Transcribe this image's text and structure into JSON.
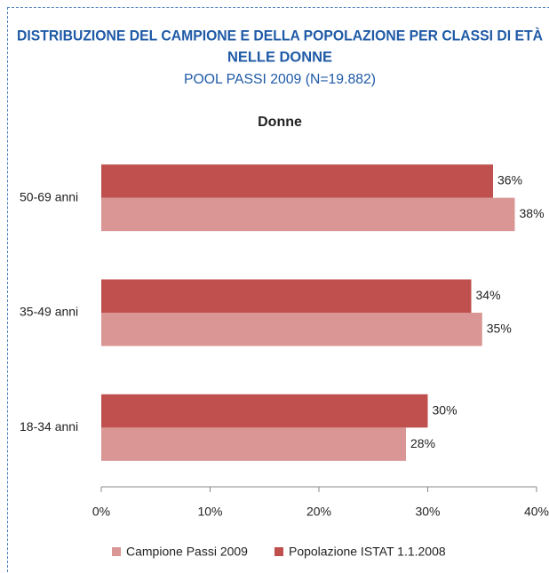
{
  "chart_data": {
    "type": "hbar",
    "title": [
      "DISTRIBUZIONE DEL CAMPIONE E DELLA POPOLAZIONE PER CLASSI DI ETÀ",
      "NELLE DONNE"
    ],
    "subtitle": "POOL PASSI 2009 (N=19.882)",
    "chart_title": "Donne",
    "categories": [
      "50-69 anni",
      "35-49 anni",
      "18-34 anni"
    ],
    "series": [
      {
        "name": "Campione Passi 2009",
        "color": "#d99694",
        "values": [
          38,
          35,
          28
        ],
        "value_labels": [
          "38%",
          "35%",
          "28%"
        ]
      },
      {
        "name": "Popolazione ISTAT 1.1.2008",
        "color": "#c0504d",
        "values": [
          36,
          34,
          30
        ],
        "value_labels": [
          "36%",
          "34%",
          "30%"
        ]
      }
    ],
    "xlim": [
      0,
      40
    ],
    "xticks": [
      {
        "value": 0,
        "label": "0%"
      },
      {
        "value": 10,
        "label": "10%"
      },
      {
        "value": 20,
        "label": "20%"
      },
      {
        "value": 30,
        "label": "30%"
      },
      {
        "value": 40,
        "label": "40%"
      }
    ],
    "grid": false,
    "legend": "bottom"
  }
}
